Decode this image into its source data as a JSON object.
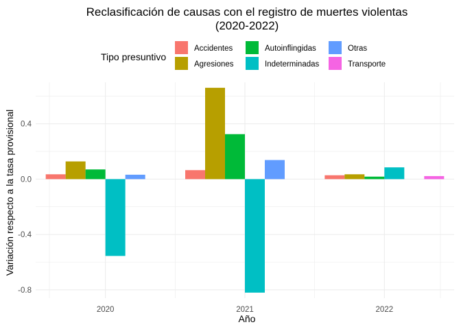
{
  "chart_data": {
    "type": "bar",
    "title_lines": [
      "Reclasificación de causas con el registro de muertes violentas",
      "(2020-2022)"
    ],
    "xlabel": "Año",
    "ylabel": "Variación respecto a la tasa provisional",
    "categories": [
      "2020",
      "2021",
      "2022"
    ],
    "ylim": [
      -0.86,
      0.7
    ],
    "yticks": [
      0.4,
      0.0,
      -0.4,
      -0.8
    ],
    "ytick_labels": [
      "0.4",
      "0.0",
      "-0.4",
      "-0.8"
    ],
    "grid": true,
    "legend": {
      "title": "Tipo presuntivo",
      "position": "top"
    },
    "series": [
      {
        "name": "Accidentes",
        "color": "#F8766D",
        "values": [
          0.035,
          0.065,
          0.028
        ]
      },
      {
        "name": "Agresiones",
        "color": "#B79F00",
        "values": [
          0.128,
          0.66,
          0.035
        ]
      },
      {
        "name": "Autoinflingidas",
        "color": "#00BA38",
        "values": [
          0.07,
          0.325,
          0.018
        ]
      },
      {
        "name": "Indeterminadas",
        "color": "#00BFC4",
        "values": [
          -0.555,
          -0.82,
          0.085
        ]
      },
      {
        "name": "Otras",
        "color": "#619CFF",
        "values": [
          0.032,
          0.138,
          null
        ]
      },
      {
        "name": "Transporte",
        "color": "#F564E3",
        "values": [
          null,
          null,
          0.022
        ]
      }
    ]
  }
}
